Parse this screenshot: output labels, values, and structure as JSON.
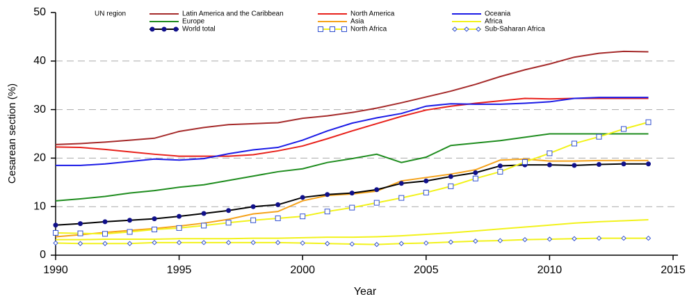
{
  "chart_data": {
    "type": "line",
    "x_label": "Year",
    "y_label": "Cesarean section (%)",
    "legend_title": "UN region",
    "x": [
      1990,
      1991,
      1992,
      1993,
      1994,
      1995,
      1996,
      1997,
      1998,
      1999,
      2000,
      2001,
      2002,
      2003,
      2004,
      2005,
      2006,
      2007,
      2008,
      2009,
      2010,
      2011,
      2012,
      2013,
      2014
    ],
    "xlim": [
      1990,
      2015
    ],
    "xticks": [
      1990,
      1995,
      2000,
      2005,
      2010,
      2015
    ],
    "ylim": [
      0,
      50
    ],
    "yticks": [
      0,
      10,
      20,
      30,
      40,
      50
    ],
    "grid": true,
    "series": [
      {
        "name": "Latin America and the Caribbean",
        "color": "#a52a2a",
        "values": [
          22.8,
          23,
          23.3,
          23.7,
          24.1,
          25.5,
          26.3,
          26.9,
          27.1,
          27.3,
          28.2,
          28.7,
          29.4,
          30.3,
          31.4,
          32.6,
          33.8,
          35.2,
          36.8,
          38.2,
          39.4,
          40.8,
          41.6,
          42,
          41.9
        ]
      },
      {
        "name": "North America",
        "color": "#e8201a",
        "values": [
          22.3,
          22.2,
          21.8,
          21.3,
          20.8,
          20.4,
          20.4,
          20.4,
          20.7,
          21.5,
          22.5,
          24,
          25.6,
          27.1,
          28.6,
          29.9,
          30.7,
          31.3,
          31.8,
          32.3,
          32.2,
          32.3,
          32.3,
          32.3,
          32.3
        ]
      },
      {
        "name": "Oceania",
        "color": "#1a1ae6",
        "values": [
          18.5,
          18.5,
          18.8,
          19.3,
          19.8,
          19.6,
          19.9,
          20.9,
          21.7,
          22.2,
          23.7,
          25.6,
          27.2,
          28.3,
          29.2,
          30.7,
          31.2,
          31.1,
          31.1,
          31.3,
          31.6,
          32.3,
          32.5,
          32.5,
          32.5
        ]
      },
      {
        "name": "Europe",
        "color": "#1e8c1e",
        "values": [
          11.2,
          11.6,
          12.1,
          12.8,
          13.3,
          14,
          14.5,
          15.4,
          16.3,
          17.2,
          17.8,
          19.1,
          19.9,
          20.8,
          19.1,
          20.2,
          22.6,
          23.1,
          23.6,
          24.3,
          25,
          25,
          25,
          25,
          25
        ]
      },
      {
        "name": "Asia",
        "color": "#f5a21a",
        "values": [
          3.8,
          4.2,
          4.7,
          5.1,
          5.5,
          6,
          6.6,
          7.4,
          8.5,
          9,
          11.2,
          12.3,
          12.6,
          13.2,
          15.3,
          16,
          16.7,
          17.6,
          19.6,
          19.8,
          19.4,
          19.4,
          19.5,
          19.5,
          19.5
        ]
      },
      {
        "name": "Africa",
        "color": "#f2f21a",
        "values": [
          3.2,
          3.2,
          3.3,
          3.3,
          3.3,
          3.4,
          3.4,
          3.4,
          3.5,
          3.5,
          3.6,
          3.7,
          3.7,
          3.8,
          4,
          4.3,
          4.6,
          5,
          5.4,
          5.8,
          6.2,
          6.6,
          6.9,
          7.1,
          7.3
        ]
      },
      {
        "name": "World total",
        "color": "#000000",
        "marker": "circle",
        "marker_color": "#10108a",
        "values": [
          6.2,
          6.5,
          6.9,
          7.2,
          7.5,
          8,
          8.6,
          9.2,
          10,
          10.4,
          11.9,
          12.5,
          12.8,
          13.5,
          14.8,
          15.3,
          16.2,
          17,
          18.4,
          18.6,
          18.6,
          18.5,
          18.7,
          18.8,
          18.8
        ]
      },
      {
        "name": "North Africa",
        "color": "#f2f21a",
        "marker": "square",
        "marker_color": "#3050d0",
        "values": [
          4.6,
          4.5,
          4.4,
          4.8,
          5.3,
          5.6,
          6.1,
          6.7,
          7.2,
          7.6,
          8,
          9,
          9.8,
          10.8,
          11.8,
          12.9,
          14.2,
          15.8,
          17.2,
          19.2,
          21,
          23,
          24.4,
          26,
          27.4
        ]
      },
      {
        "name": "Sub-Saharan Africa",
        "color": "#f2f21a",
        "marker": "diamond",
        "marker_color": "#3050d0",
        "values": [
          2.5,
          2.4,
          2.4,
          2.4,
          2.6,
          2.6,
          2.6,
          2.6,
          2.6,
          2.6,
          2.5,
          2.4,
          2.3,
          2.2,
          2.4,
          2.5,
          2.7,
          2.9,
          3,
          3.2,
          3.3,
          3.4,
          3.5,
          3.5,
          3.5
        ]
      }
    ]
  }
}
